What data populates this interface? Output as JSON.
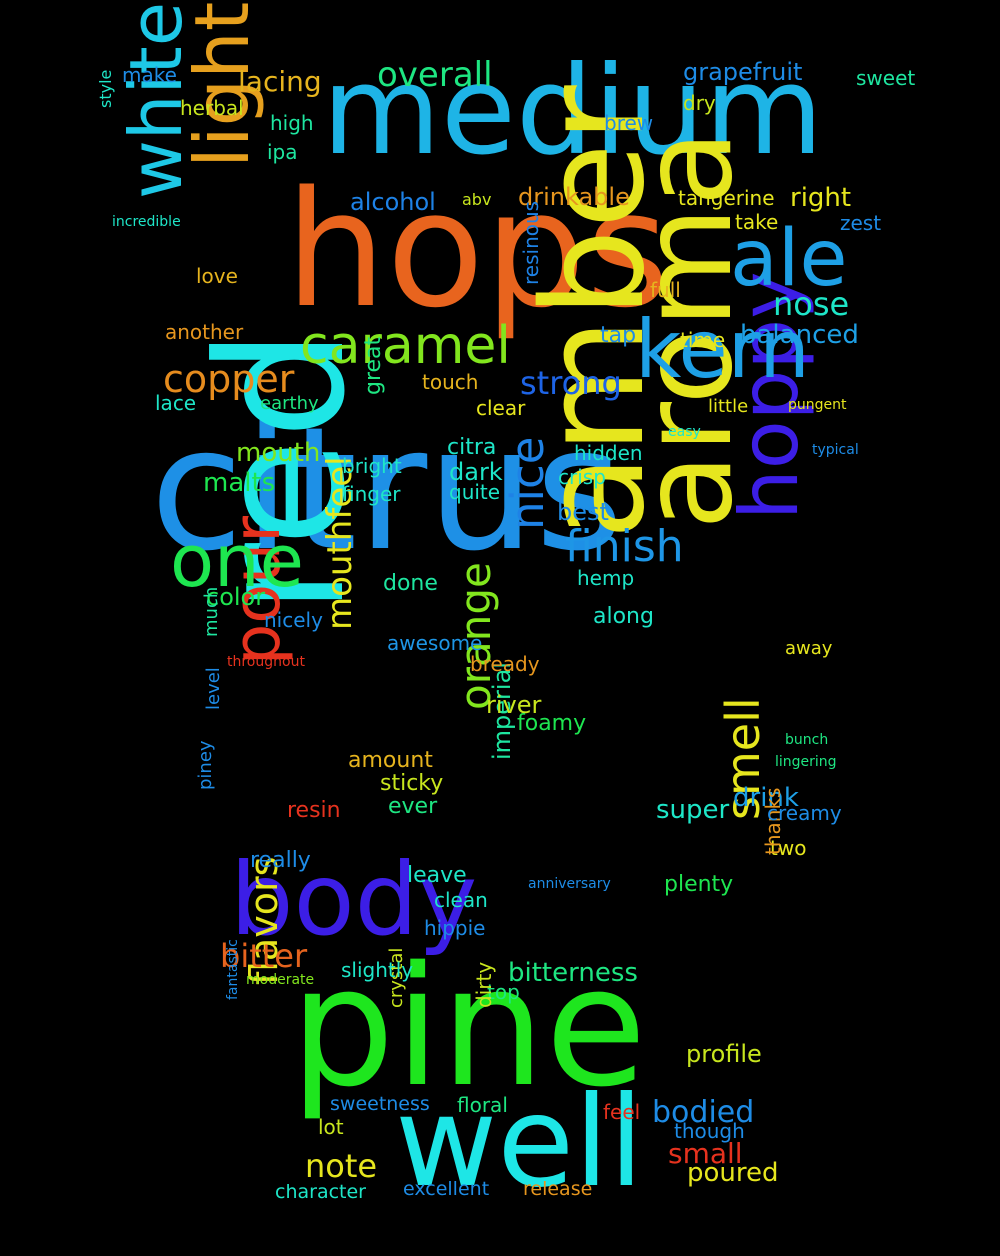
{
  "words": [
    {
      "text": "citrus",
      "color": "#1e90e6"
    },
    {
      "text": "hops",
      "color": "#e8641e"
    },
    {
      "text": "red",
      "color": "#1ee6e6"
    },
    {
      "text": "pine",
      "color": "#1ee61e"
    },
    {
      "text": "medium",
      "color": "#1eb4e6"
    },
    {
      "text": "amber",
      "color": "#e6e61e"
    },
    {
      "text": "aroma",
      "color": "#e6e61e"
    },
    {
      "text": "well",
      "color": "#1ee6e6"
    },
    {
      "text": "body",
      "color": "#3c1ee6"
    },
    {
      "text": "hoppy",
      "color": "#3c1ee6"
    },
    {
      "text": "light",
      "color": "#e6a01e"
    },
    {
      "text": "white",
      "color": "#1ec8e6"
    },
    {
      "text": "pour",
      "color": "#e6321e"
    },
    {
      "text": "one",
      "color": "#1ee650"
    },
    {
      "text": "kern",
      "color": "#1ea0e6"
    },
    {
      "text": "ale",
      "color": "#1ea0e6"
    },
    {
      "text": "caramel",
      "color": "#82e61e"
    },
    {
      "text": "finish",
      "color": "#1e96e6"
    },
    {
      "text": "nice",
      "color": "#1e82e6"
    },
    {
      "text": "orange",
      "color": "#82e61e"
    },
    {
      "text": "smell",
      "color": "#e6e61e"
    },
    {
      "text": "flavors",
      "color": "#e6e61e"
    },
    {
      "text": "copper",
      "color": "#e68c1e"
    },
    {
      "text": "overall",
      "color": "#1ee682"
    },
    {
      "text": "mouthfeel",
      "color": "#e6e61e"
    },
    {
      "text": "bitter",
      "color": "#e6641e"
    },
    {
      "text": "strong",
      "color": "#1e64e6"
    },
    {
      "text": "note",
      "color": "#e6e61e"
    },
    {
      "text": "bodied",
      "color": "#1e8ce6"
    },
    {
      "text": "small",
      "color": "#e6321e"
    },
    {
      "text": "poured",
      "color": "#e6e61e"
    },
    {
      "text": "profile",
      "color": "#c8e61e"
    },
    {
      "text": "nose",
      "color": "#1ee6c8"
    },
    {
      "text": "balanced",
      "color": "#1ea0e6"
    },
    {
      "text": "lacing",
      "color": "#e6b41e"
    },
    {
      "text": "grapefruit",
      "color": "#1e8ce6"
    },
    {
      "text": "drinkable",
      "color": "#e6961e"
    },
    {
      "text": "alcohol",
      "color": "#1e82e6"
    },
    {
      "text": "malts",
      "color": "#1ee650"
    },
    {
      "text": "mouth",
      "color": "#82e61e"
    },
    {
      "text": "bitterness",
      "color": "#1ee682"
    },
    {
      "text": "imperial",
      "color": "#1ee6a0"
    },
    {
      "text": "super",
      "color": "#1ee6c8"
    },
    {
      "text": "drink",
      "color": "#1ea0e6"
    },
    {
      "text": "sweetness",
      "color": "#1e8ce6"
    },
    {
      "text": "excellent",
      "color": "#1e8ce6"
    },
    {
      "text": "character",
      "color": "#1ee6c8"
    },
    {
      "text": "release",
      "color": "#e6961e"
    },
    {
      "text": "color",
      "color": "#1ee650"
    },
    {
      "text": "plenty",
      "color": "#1ee650"
    },
    {
      "text": "really",
      "color": "#1e8ce6"
    },
    {
      "text": "leave",
      "color": "#1ee6c8"
    },
    {
      "text": "amount",
      "color": "#e6b41e"
    },
    {
      "text": "sticky",
      "color": "#c8e61e"
    },
    {
      "text": "ever",
      "color": "#1ee682"
    },
    {
      "text": "resin",
      "color": "#e6321e"
    },
    {
      "text": "river",
      "color": "#c8e61e"
    },
    {
      "text": "foamy",
      "color": "#1ee650"
    },
    {
      "text": "bready",
      "color": "#e6961e"
    },
    {
      "text": "awesome",
      "color": "#1e96e6"
    },
    {
      "text": "along",
      "color": "#1ee6c8"
    },
    {
      "text": "done",
      "color": "#1ee6a0"
    },
    {
      "text": "hemp",
      "color": "#1ee6c8"
    },
    {
      "text": "best",
      "color": "#1e8ce6"
    },
    {
      "text": "crisp",
      "color": "#1ee6c8"
    },
    {
      "text": "quite",
      "color": "#1ee6c8"
    },
    {
      "text": "dark",
      "color": "#1ee6c8"
    },
    {
      "text": "citra",
      "color": "#1ee6c8"
    },
    {
      "text": "hidden",
      "color": "#1ee6c8"
    },
    {
      "text": "bright",
      "color": "#1ee6c8"
    },
    {
      "text": "finger",
      "color": "#1ee6c8"
    },
    {
      "text": "clear",
      "color": "#e6e61e"
    },
    {
      "text": "touch",
      "color": "#e6b41e"
    },
    {
      "text": "great",
      "color": "#1ee682"
    },
    {
      "text": "resinous",
      "color": "#1e82e6"
    },
    {
      "text": "tap",
      "color": "#1e8ce6"
    },
    {
      "text": "full",
      "color": "#e6b41e"
    },
    {
      "text": "time",
      "color": "#e6e61e"
    },
    {
      "text": "right",
      "color": "#e6e61e"
    },
    {
      "text": "take",
      "color": "#e6e61e"
    },
    {
      "text": "tangerine",
      "color": "#e6e61e"
    },
    {
      "text": "abv",
      "color": "#c8e61e"
    },
    {
      "text": "dry",
      "color": "#c8e61e"
    },
    {
      "text": "brew",
      "color": "#1e8ce6"
    },
    {
      "text": "sweet",
      "color": "#1ee6a0"
    },
    {
      "text": "zest",
      "color": "#1e8ce6"
    },
    {
      "text": "love",
      "color": "#e6b41e"
    },
    {
      "text": "another",
      "color": "#e6961e"
    },
    {
      "text": "lace",
      "color": "#1ee6c8"
    },
    {
      "text": "earthy",
      "color": "#1ee682"
    },
    {
      "text": "herbal",
      "color": "#c8e61e"
    },
    {
      "text": "high",
      "color": "#1ee6a0"
    },
    {
      "text": "ipa",
      "color": "#1ee6a0"
    },
    {
      "text": "make",
      "color": "#1e8ce6"
    },
    {
      "text": "style",
      "color": "#1ee6c8"
    },
    {
      "text": "incredible",
      "color": "#1ee6c8"
    },
    {
      "text": "little",
      "color": "#e6e61e"
    },
    {
      "text": "pungent",
      "color": "#e6e61e"
    },
    {
      "text": "easy",
      "color": "#1ee6c8"
    },
    {
      "text": "typical",
      "color": "#1e8ce6"
    },
    {
      "text": "away",
      "color": "#e6e61e"
    },
    {
      "text": "two",
      "color": "#e6e61e"
    },
    {
      "text": "thanks",
      "color": "#e6961e"
    },
    {
      "text": "creamy",
      "color": "#1e8ce6"
    },
    {
      "text": "bunch",
      "color": "#1ee682"
    },
    {
      "text": "lingering",
      "color": "#1ee682"
    },
    {
      "text": "though",
      "color": "#1e8ce6"
    },
    {
      "text": "feel",
      "color": "#e6321e"
    },
    {
      "text": "floral",
      "color": "#1ee682"
    },
    {
      "text": "lot",
      "color": "#c8e61e"
    },
    {
      "text": "top",
      "color": "#1ee682"
    },
    {
      "text": "dirty",
      "color": "#c8e61e"
    },
    {
      "text": "crystal",
      "color": "#c8e61e"
    },
    {
      "text": "slightly",
      "color": "#1ee6c8"
    },
    {
      "text": "hippie",
      "color": "#1e8ce6"
    },
    {
      "text": "clean",
      "color": "#1ee6c8"
    },
    {
      "text": "moderate",
      "color": "#82e61e"
    },
    {
      "text": "anniversary",
      "color": "#1e8ce6"
    },
    {
      "text": "much",
      "color": "#1ee6a0"
    },
    {
      "text": "level",
      "color": "#1e8ce6"
    },
    {
      "text": "piney",
      "color": "#1e8ce6"
    },
    {
      "text": "nicely",
      "color": "#1e8ce6"
    },
    {
      "text": "throughout",
      "color": "#e6321e"
    },
    {
      "text": "fantastic",
      "color": "#1e8ce6"
    }
  ]
}
